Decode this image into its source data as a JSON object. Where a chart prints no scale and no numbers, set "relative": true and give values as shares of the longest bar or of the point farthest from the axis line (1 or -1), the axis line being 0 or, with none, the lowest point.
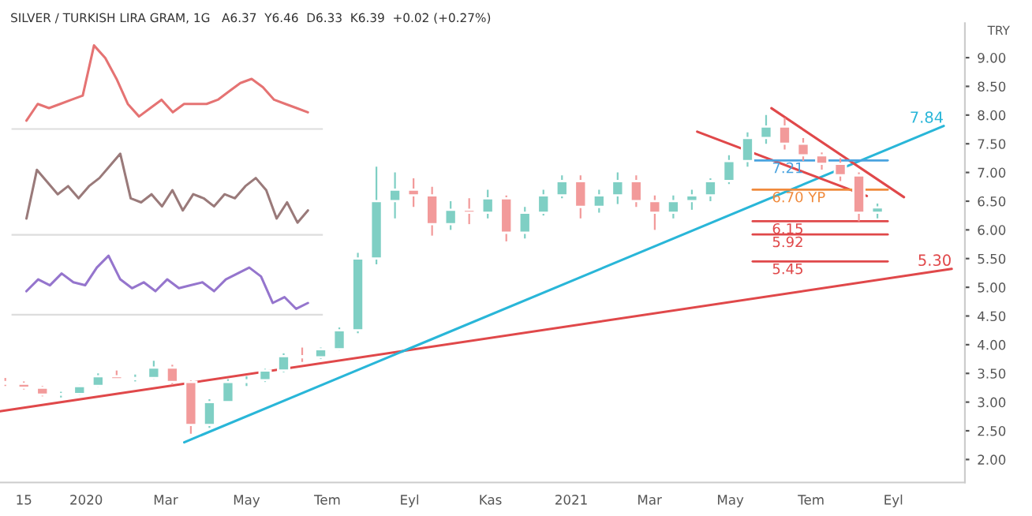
{
  "chart_data": [
    {
      "type": "candlestick",
      "title": "SILVER / TURKISH LIRA GRAM, 1G   A6.37  Y6.46  D6.33  K6.39  +0.02 (+0.27%)",
      "ylabel": "TRY",
      "x": [
        "2019-11-01",
        "2019-11-15",
        "2019-11-29",
        "2019-12-13",
        "2019-12-27",
        "2020-01-10",
        "2020-01-24",
        "2020-02-07",
        "2020-02-21",
        "2020-03-06",
        "2020-03-20",
        "2020-04-03",
        "2020-04-17",
        "2020-05-01",
        "2020-05-15",
        "2020-05-29",
        "2020-06-12",
        "2020-06-26",
        "2020-07-10",
        "2020-07-24",
        "2020-08-07",
        "2020-08-21",
        "2020-09-04",
        "2020-09-18",
        "2020-10-02",
        "2020-10-16",
        "2020-10-30",
        "2020-11-13",
        "2020-11-27",
        "2020-12-11",
        "2020-12-25",
        "2021-01-08",
        "2021-01-22",
        "2021-02-05",
        "2021-02-19",
        "2021-03-05",
        "2021-03-19",
        "2021-04-02",
        "2021-04-16",
        "2021-04-30",
        "2021-05-14",
        "2021-05-28",
        "2021-06-11",
        "2021-06-25",
        "2021-07-09",
        "2021-07-23",
        "2021-08-06",
        "2021-08-20"
      ],
      "ohlc": [
        [
          3.35,
          3.42,
          3.28,
          3.32
        ],
        [
          3.32,
          3.36,
          3.22,
          3.25
        ],
        [
          3.25,
          3.28,
          3.1,
          3.13
        ],
        [
          3.13,
          3.18,
          3.08,
          3.14
        ],
        [
          3.14,
          3.3,
          3.12,
          3.28
        ],
        [
          3.28,
          3.5,
          3.26,
          3.45
        ],
        [
          3.45,
          3.55,
          3.38,
          3.4
        ],
        [
          3.4,
          3.48,
          3.36,
          3.42
        ],
        [
          3.42,
          3.72,
          3.4,
          3.6
        ],
        [
          3.6,
          3.65,
          3.3,
          3.35
        ],
        [
          3.35,
          3.38,
          2.45,
          2.6
        ],
        [
          2.6,
          3.05,
          2.55,
          3.0
        ],
        [
          3.0,
          3.4,
          2.98,
          3.35
        ],
        [
          3.35,
          3.45,
          3.28,
          3.38
        ],
        [
          3.38,
          3.58,
          3.35,
          3.55
        ],
        [
          3.55,
          3.85,
          3.52,
          3.8
        ],
        [
          3.8,
          3.95,
          3.7,
          3.78
        ],
        [
          3.78,
          3.95,
          3.75,
          3.92
        ],
        [
          3.92,
          4.3,
          3.9,
          4.25
        ],
        [
          4.25,
          5.6,
          4.2,
          5.5
        ],
        [
          5.5,
          7.1,
          5.4,
          6.5
        ],
        [
          6.5,
          7.0,
          6.2,
          6.7
        ],
        [
          6.7,
          6.9,
          6.4,
          6.6
        ],
        [
          6.6,
          6.75,
          5.9,
          6.1
        ],
        [
          6.1,
          6.5,
          6.0,
          6.35
        ],
        [
          6.35,
          6.55,
          6.1,
          6.3
        ],
        [
          6.3,
          6.7,
          6.2,
          6.55
        ],
        [
          6.55,
          6.6,
          5.8,
          5.95
        ],
        [
          5.95,
          6.4,
          5.85,
          6.3
        ],
        [
          6.3,
          6.7,
          6.25,
          6.6
        ],
        [
          6.6,
          6.95,
          6.55,
          6.85
        ],
        [
          6.85,
          6.95,
          6.2,
          6.4
        ],
        [
          6.4,
          6.7,
          6.3,
          6.6
        ],
        [
          6.6,
          7.0,
          6.45,
          6.85
        ],
        [
          6.85,
          6.95,
          6.4,
          6.5
        ],
        [
          6.5,
          6.6,
          6.0,
          6.3
        ],
        [
          6.3,
          6.6,
          6.2,
          6.5
        ],
        [
          6.5,
          6.7,
          6.35,
          6.6
        ],
        [
          6.6,
          6.9,
          6.5,
          6.85
        ],
        [
          6.85,
          7.3,
          6.8,
          7.2
        ],
        [
          7.2,
          7.7,
          7.1,
          7.6
        ],
        [
          7.6,
          8.0,
          7.5,
          7.8
        ],
        [
          7.8,
          7.95,
          7.4,
          7.5
        ],
        [
          7.5,
          7.6,
          7.2,
          7.3
        ],
        [
          7.3,
          7.35,
          7.05,
          7.15
        ],
        [
          7.15,
          7.25,
          6.85,
          6.95
        ],
        [
          6.95,
          7.0,
          6.15,
          6.3
        ],
        [
          6.3,
          6.46,
          6.2,
          6.39
        ]
      ],
      "series": [
        {
          "type": "line",
          "name": "5.30",
          "color": "#e0484a",
          "x": [
            "2019-10-28",
            "2021-10-15"
          ],
          "values": [
            2.84,
            5.32
          ]
        },
        {
          "type": "line",
          "name": "7.84",
          "color": "#29b6d8",
          "x": [
            "2020-03-15",
            "2021-10-09"
          ],
          "values": [
            2.3,
            7.81
          ]
        },
        {
          "type": "line",
          "color": "#e0484a",
          "x": [
            "2021-06-01",
            "2021-09-09"
          ],
          "values": [
            8.12,
            6.57
          ]
        },
        {
          "type": "line",
          "color": "#e0484a",
          "x": [
            "2021-04-06",
            "2021-08-12"
          ],
          "values": [
            7.71,
            6.59
          ]
        }
      ],
      "ref_lines": [
        {
          "axis": "y",
          "value": 7.21,
          "label": "7.21",
          "color": "#4aa3df"
        },
        {
          "axis": "y",
          "value": 6.7,
          "label": "6.70 YP",
          "color": "#f08a3c"
        },
        {
          "axis": "y",
          "value": 6.15,
          "label": "6.15",
          "color": "#e0484a"
        },
        {
          "axis": "y",
          "value": 5.92,
          "label": "5.92",
          "color": "#e0484a"
        },
        {
          "axis": "y",
          "value": 5.45,
          "label": "5.45",
          "color": "#e0484a"
        }
      ],
      "xlim": [
        "2019-10-28",
        "2021-10-25"
      ],
      "ylim": [
        1.6,
        9.6
      ],
      "xticks": [
        {
          "value": "2019-11-15",
          "label": "15"
        },
        {
          "value": "2020-01-01",
          "label": "2020"
        },
        {
          "value": "2020-03-01",
          "label": "Mar"
        },
        {
          "value": "2020-05-01",
          "label": "May"
        },
        {
          "value": "2020-07-01",
          "label": "Tem"
        },
        {
          "value": "2020-09-01",
          "label": "Eyl"
        },
        {
          "value": "2020-11-01",
          "label": "Kas"
        },
        {
          "value": "2021-01-01",
          "label": "2021"
        },
        {
          "value": "2021-03-01",
          "label": "Mar"
        },
        {
          "value": "2021-05-01",
          "label": "May"
        },
        {
          "value": "2021-07-01",
          "label": "Tem"
        },
        {
          "value": "2021-09-01",
          "label": "Eyl"
        }
      ],
      "yticks": [
        {
          "value": 2,
          "label": "2.00"
        },
        {
          "value": 2.5,
          "label": "2.50"
        },
        {
          "value": 3,
          "label": "3.00"
        },
        {
          "value": 3.5,
          "label": "3.50"
        },
        {
          "value": 4,
          "label": "4.00"
        },
        {
          "value": 4.5,
          "label": "4.50"
        },
        {
          "value": 5,
          "label": "5.00"
        },
        {
          "value": 5.5,
          "label": "5.50"
        },
        {
          "value": 6,
          "label": "6.00"
        },
        {
          "value": 6.5,
          "label": "6.50"
        },
        {
          "value": 7,
          "label": "7.00"
        },
        {
          "value": 7.5,
          "label": "7.50"
        },
        {
          "value": 8,
          "label": "8.00"
        },
        {
          "value": 8.5,
          "label": "8.50"
        },
        {
          "value": 9,
          "label": "9.00"
        }
      ],
      "grid": false,
      "legend": false
    },
    {
      "type": "line",
      "relative": true,
      "categories": [
        null,
        null,
        null,
        null,
        null,
        null,
        null,
        null,
        null,
        null,
        null,
        null,
        null,
        null,
        null,
        null,
        null,
        null,
        null,
        null,
        null,
        null,
        null,
        null,
        null,
        null
      ],
      "series": [
        {
          "color": "#e57373",
          "values": [
            0.1,
            0.3,
            0.25,
            0.3,
            0.35,
            0.4,
            1.0,
            0.85,
            0.6,
            0.3,
            0.15,
            0.25,
            0.35,
            0.2,
            0.3,
            0.3,
            0.3,
            0.35,
            0.45,
            0.55,
            0.6,
            0.5,
            0.35,
            0.3,
            0.25,
            0.2
          ]
        }
      ]
    },
    {
      "type": "line",
      "relative": true,
      "categories": [
        null,
        null,
        null,
        null,
        null,
        null,
        null,
        null,
        null,
        null,
        null,
        null,
        null,
        null,
        null,
        null,
        null,
        null,
        null,
        null,
        null,
        null,
        null,
        null,
        null,
        null,
        null,
        null
      ],
      "series": [
        {
          "color": "#9a7a7a",
          "values": [
            0.2,
            0.8,
            0.65,
            0.5,
            0.6,
            0.45,
            0.6,
            0.7,
            0.85,
            1.0,
            0.45,
            0.4,
            0.5,
            0.35,
            0.55,
            0.3,
            0.5,
            0.45,
            0.35,
            0.5,
            0.45,
            0.6,
            0.7,
            0.55,
            0.2,
            0.4,
            0.15,
            0.3
          ]
        }
      ]
    },
    {
      "type": "line",
      "relative": true,
      "categories": [
        null,
        null,
        null,
        null,
        null,
        null,
        null,
        null,
        null,
        null,
        null,
        null,
        null,
        null,
        null,
        null,
        null,
        null,
        null,
        null,
        null,
        null,
        null,
        null,
        null
      ],
      "series": [
        {
          "color": "#9575cd",
          "values": [
            0.4,
            0.6,
            0.5,
            0.7,
            0.55,
            0.5,
            0.8,
            1.0,
            0.6,
            0.45,
            0.55,
            0.4,
            0.6,
            0.45,
            0.5,
            0.55,
            0.4,
            0.6,
            0.7,
            0.8,
            0.65,
            0.2,
            0.3,
            0.1,
            0.2
          ]
        }
      ]
    }
  ]
}
